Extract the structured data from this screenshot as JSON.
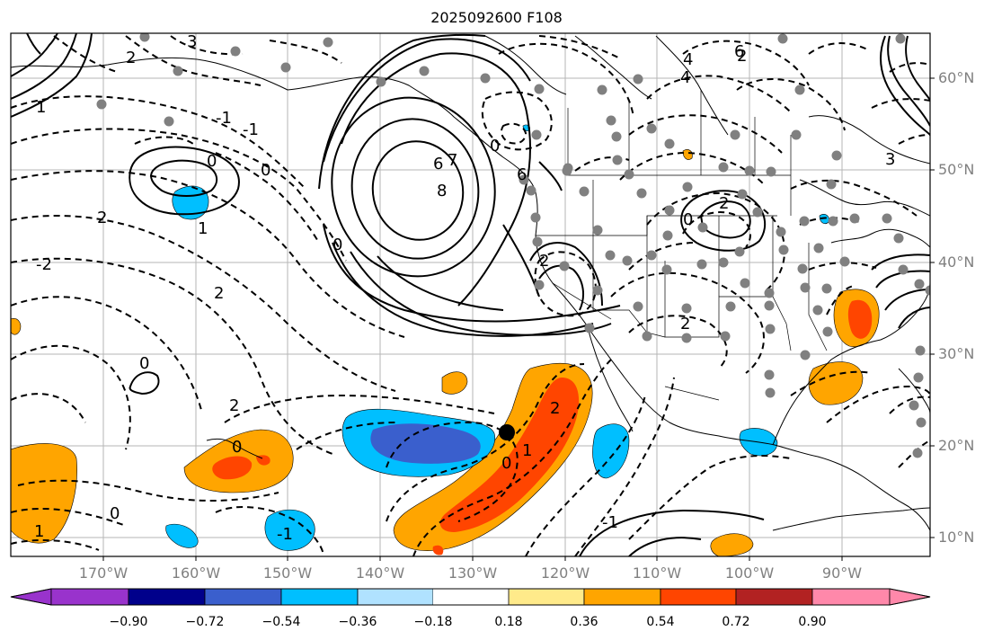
{
  "title": "2025092600 F108",
  "lat_labels": [
    "60°N",
    "50°N",
    "40°N",
    "30°N",
    "20°N",
    "10°N"
  ],
  "lon_labels": [
    "170°W",
    "160°W",
    "150°W",
    "140°W",
    "130°W",
    "120°W",
    "110°W",
    "100°W",
    "90°W"
  ],
  "colorbar": {
    "ticks": [
      "−0.90",
      "−0.72",
      "−0.54",
      "−0.36",
      "−0.18",
      "0.18",
      "0.36",
      "0.54",
      "0.72",
      "0.90"
    ],
    "colors": [
      "#9933cc",
      "#00008b",
      "#3a5fcd",
      "#00bfff",
      "#b0e2ff",
      "#ffffff",
      "#ffea8a",
      "#ffa500",
      "#ff4500",
      "#b22222",
      "#ff88aa"
    ]
  },
  "contour_labels": [
    "3",
    "2",
    "1",
    "-1",
    "0",
    "-1",
    "2",
    "0",
    "6",
    "8",
    "7",
    "6",
    "4",
    "2",
    "0",
    "2",
    "0",
    "2",
    "-2",
    "0",
    "2",
    "1",
    "0",
    "2",
    "-1",
    "0",
    "1",
    "0",
    "1",
    "0",
    "-1",
    "2",
    "4",
    "6",
    "2",
    "3"
  ],
  "colors": {
    "cool": "#00bfff",
    "cool_dark": "#3a5fcd",
    "light_cool": "#b0e2ff",
    "warm": "#ffa500",
    "hot": "#ff4500"
  }
}
